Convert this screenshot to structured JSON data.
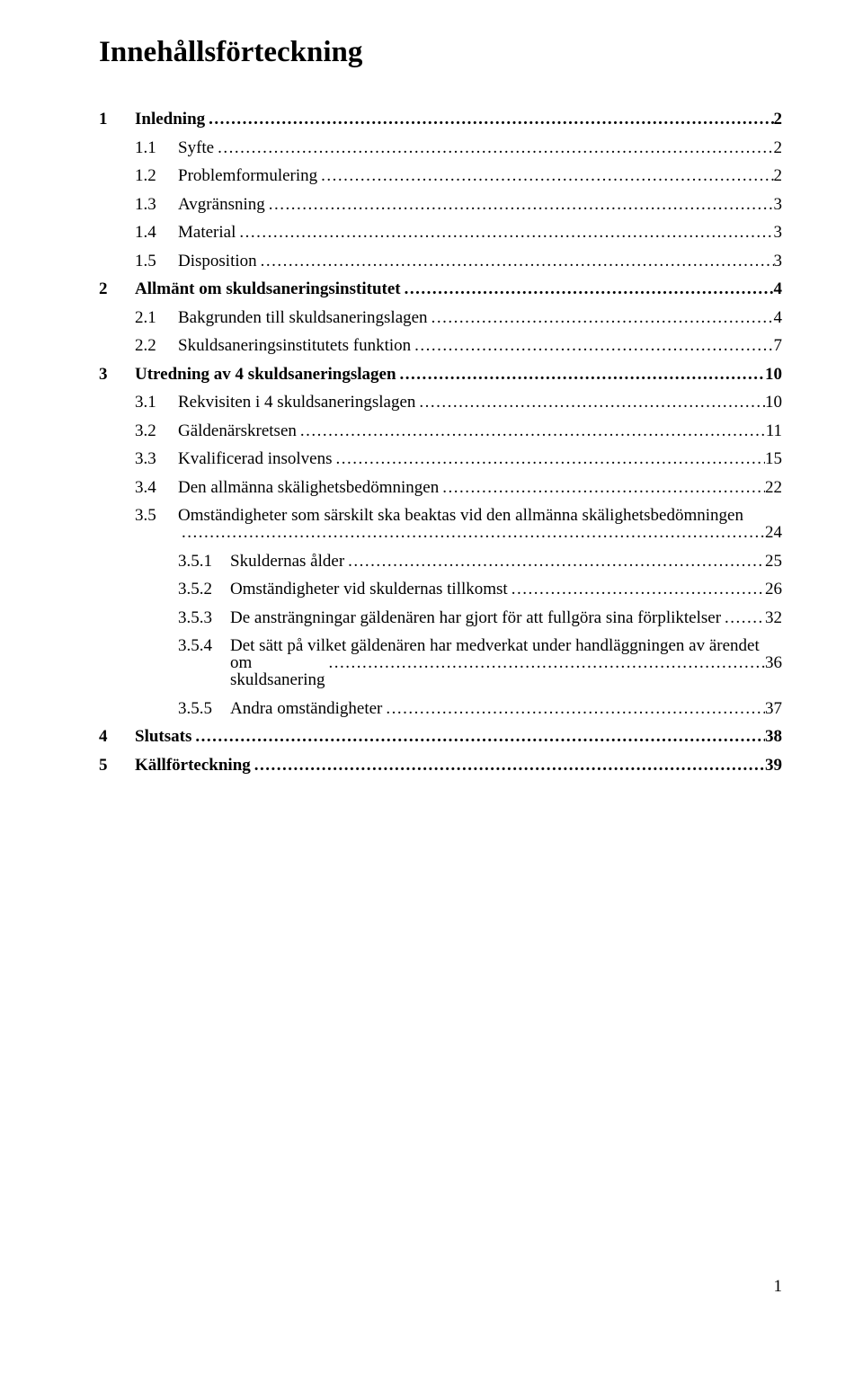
{
  "title": "Innehållsförteckning",
  "leader": "....................................................................................................................................................................................................................................................",
  "toc": [
    {
      "num": "1",
      "label": "Inledning",
      "page": "2",
      "indent": 0
    },
    {
      "num": "1.1",
      "label": "Syfte",
      "page": "2",
      "indent": 1
    },
    {
      "num": "1.2",
      "label": "Problemformulering",
      "page": "2",
      "indent": 1
    },
    {
      "num": "1.3",
      "label": "Avgränsning",
      "page": "3",
      "indent": 1
    },
    {
      "num": "1.4",
      "label": "Material",
      "page": "3",
      "indent": 1
    },
    {
      "num": "1.5",
      "label": "Disposition",
      "page": "3",
      "indent": 1
    },
    {
      "num": "2",
      "label": "Allmänt om skuldsaneringsinstitutet",
      "page": "4",
      "indent": 0
    },
    {
      "num": "2.1",
      "label": "Bakgrunden till skuldsaneringslagen",
      "page": "4",
      "indent": 1
    },
    {
      "num": "2.2",
      "label": "Skuldsaneringsinstitutets funktion",
      "page": "7",
      "indent": 1
    },
    {
      "num": "3",
      "label": "Utredning av 4 skuldsaneringslagen",
      "page": "10",
      "indent": 0
    },
    {
      "num": "3.1",
      "label": "Rekvisiten i 4 skuldsaneringslagen",
      "page": "10",
      "indent": 1
    },
    {
      "num": "3.2",
      "label": "Gäldenärskretsen",
      "page": "11",
      "indent": 1
    },
    {
      "num": "3.3",
      "label": "Kvalificerad insolvens",
      "page": "15",
      "indent": 1
    },
    {
      "num": "3.4",
      "label": "Den allmänna skälighetsbedömningen",
      "page": "22",
      "indent": 1
    },
    {
      "num": "3.5",
      "label": "Omständigheter som särskilt ska beaktas vid den allmänna skälighetsbedömningen",
      "page": "24",
      "indent": 1,
      "wrap": true
    },
    {
      "num": "3.5.1",
      "label": "Skuldernas ålder",
      "page": "25",
      "indent": 2
    },
    {
      "num": "3.5.2",
      "label": "Omständigheter vid skuldernas tillkomst",
      "page": "26",
      "indent": 2
    },
    {
      "num": "3.5.3",
      "label": "De ansträngningar gäldenären har gjort för att fullgöra sina förpliktelser",
      "page": "32",
      "indent": 2
    },
    {
      "num": "3.5.4",
      "label": "Det sätt på vilket gäldenären har medverkat under handläggningen av ärendet om skuldsanering",
      "page": "36",
      "indent": 2,
      "wrap": true,
      "wrap_label_line1": "Det sätt på vilket gäldenären har medverkat under handläggningen av ärendet",
      "wrap_label_line2": "om skuldsanering"
    },
    {
      "num": "3.5.5",
      "label": "Andra omständigheter",
      "page": "37",
      "indent": 2
    },
    {
      "num": "4",
      "label": "Slutsats",
      "page": "38",
      "indent": 0
    },
    {
      "num": "5",
      "label": "Källförteckning",
      "page": "39",
      "indent": 0
    }
  ],
  "page_number": "1",
  "colors": {
    "text": "#000000",
    "background": "#ffffff"
  },
  "typography": {
    "title_fontsize_pt": 24,
    "body_fontsize_pt": 14,
    "font_family": "Times New Roman"
  }
}
